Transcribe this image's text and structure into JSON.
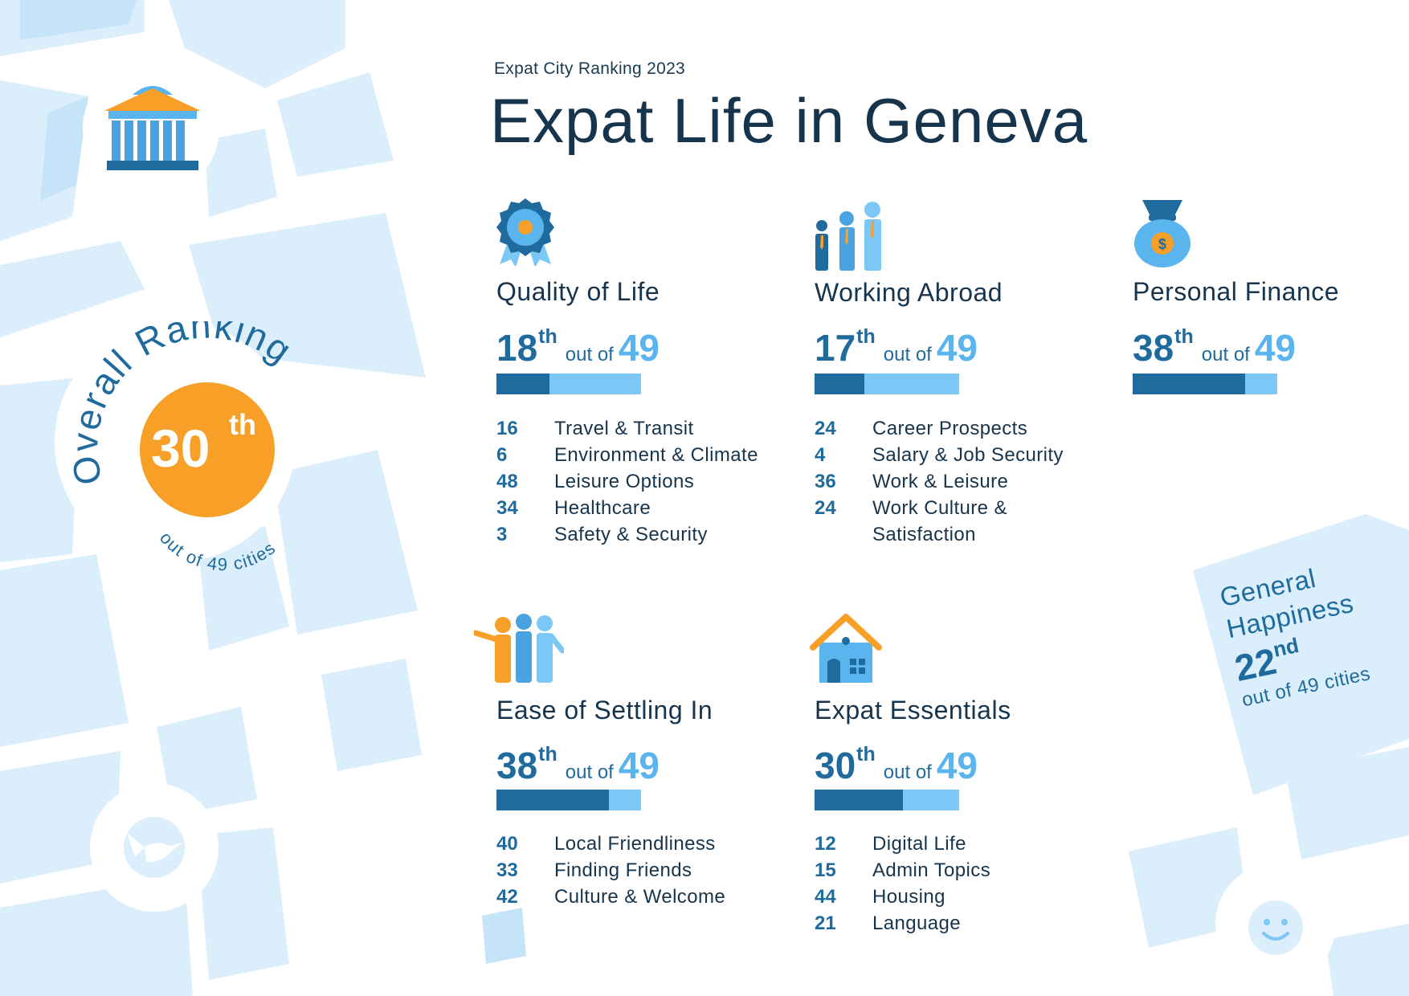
{
  "header": {
    "kicker": "Expat City Ranking 2023",
    "title": "Expat Life in Geneva"
  },
  "overall": {
    "label": "Overall Ranking",
    "rank": "30",
    "suffix": "th",
    "subtitle": "out of 49 cities"
  },
  "general_happiness": {
    "title": "General Happiness",
    "rank": "22",
    "suffix": "nd",
    "subtitle": "out of 49 cities"
  },
  "categories": [
    {
      "name": "Quality of Life",
      "icon": "award-badge-icon",
      "rank": "18",
      "suffix": "th",
      "out_of_label": "out of",
      "total": "49",
      "bar_fraction": 0.367,
      "subs": [
        {
          "rank": "16",
          "label": "Travel & Transit"
        },
        {
          "rank": "6",
          "label": "Environment & Climate"
        },
        {
          "rank": "48",
          "label": "Leisure Options"
        },
        {
          "rank": "34",
          "label": "Healthcare"
        },
        {
          "rank": "3",
          "label": "Safety & Security"
        }
      ]
    },
    {
      "name": "Working Abroad",
      "icon": "business-people-icon",
      "rank": "17",
      "suffix": "th",
      "out_of_label": "out of",
      "total": "49",
      "bar_fraction": 0.347,
      "subs": [
        {
          "rank": "24",
          "label": "Career Prospects"
        },
        {
          "rank": "4",
          "label": "Salary & Job Security"
        },
        {
          "rank": "36",
          "label": "Work & Leisure"
        },
        {
          "rank": "24",
          "label": "Work Culture &"
        },
        {
          "rank": "",
          "label": "Satisfaction"
        }
      ]
    },
    {
      "name": "Personal Finance",
      "icon": "money-bag-icon",
      "rank": "38",
      "suffix": "th",
      "out_of_label": "out of",
      "total": "49",
      "bar_fraction": 0.776,
      "subs": []
    },
    {
      "name": "Ease of Settling In",
      "icon": "friends-group-icon",
      "rank": "38",
      "suffix": "th",
      "out_of_label": "out of",
      "total": "49",
      "bar_fraction": 0.776,
      "subs": [
        {
          "rank": "40",
          "label": "Local Friendliness"
        },
        {
          "rank": "33",
          "label": "Finding Friends"
        },
        {
          "rank": "42",
          "label": "Culture & Welcome"
        }
      ]
    },
    {
      "name": "Expat Essentials",
      "icon": "house-icon",
      "rank": "30",
      "suffix": "th",
      "out_of_label": "out of",
      "total": "49",
      "bar_fraction": 0.612,
      "subs": [
        {
          "rank": "12",
          "label": "Digital Life"
        },
        {
          "rank": "15",
          "label": "Admin Topics"
        },
        {
          "rank": "44",
          "label": "Housing"
        },
        {
          "rank": "21",
          "label": "Language"
        }
      ]
    }
  ],
  "colors": {
    "dark_blue": "#1f6b9e",
    "light_blue": "#7cc7f5",
    "orange": "#f89f28",
    "map_block": "#dbeefb",
    "title": "#17344d"
  }
}
